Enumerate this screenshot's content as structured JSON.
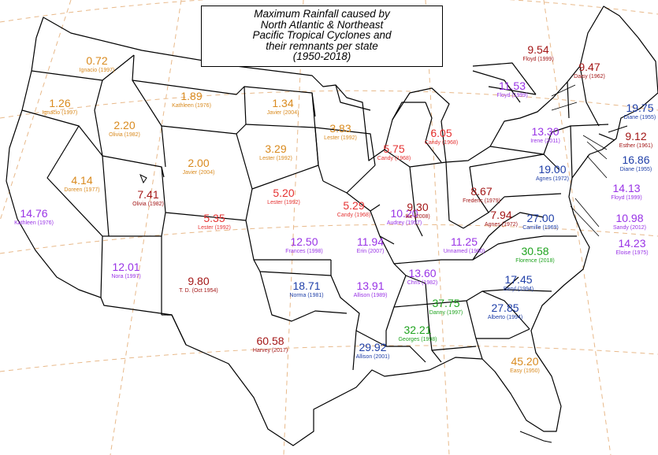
{
  "title_lines": [
    "Maximum Rainfall caused by",
    "North Atlantic & Northeast",
    "Pacific Tropical Cyclones and",
    "their remnants per state",
    "(1950-2018)"
  ],
  "colors": {
    "orange": "#d98a1e",
    "red": "#e53333",
    "darkred": "#a31616",
    "purple": "#9933e6",
    "blue": "#1f3fa8",
    "green": "#1fa31f",
    "border": "#000000",
    "graticule": "#e8b98a"
  },
  "states": [
    {
      "id": "WA",
      "value": "0.72",
      "storm": "Ignacio (1997)",
      "color": "orange"
    },
    {
      "id": "OR",
      "value": "1.26",
      "storm": "Ignacio (1997)",
      "color": "orange"
    },
    {
      "id": "ID",
      "value": "2.20",
      "storm": "Olivia (1982)",
      "color": "orange"
    },
    {
      "id": "MT",
      "value": "1.89",
      "storm": "Kathleen (1976)",
      "color": "orange"
    },
    {
      "id": "ND",
      "value": "1.34",
      "storm": "Javier (2004)",
      "color": "orange"
    },
    {
      "id": "MN",
      "value": "3.83",
      "storm": "Lester (1992)",
      "color": "orange"
    },
    {
      "id": "SD",
      "value": "3.29",
      "storm": "Lester (1992)",
      "color": "orange"
    },
    {
      "id": "WY",
      "value": "2.00",
      "storm": "Javier (2004)",
      "color": "orange"
    },
    {
      "id": "NV",
      "value": "4.14",
      "storm": "Doreen (1977)",
      "color": "orange"
    },
    {
      "id": "UT",
      "value": "7.41",
      "storm": "Olivia (1982)",
      "color": "darkred"
    },
    {
      "id": "CO",
      "value": "5.35",
      "storm": "Lester (1992)",
      "color": "red"
    },
    {
      "id": "NE",
      "value": "5.20",
      "storm": "Lester (1992)",
      "color": "red"
    },
    {
      "id": "IA",
      "value": "5.29",
      "storm": "Candy (1968)",
      "color": "red"
    },
    {
      "id": "WI",
      "value": "5.75",
      "storm": "Candy (1968)",
      "color": "red"
    },
    {
      "id": "MI",
      "value": "6.05",
      "storm": "Candy (1968)",
      "color": "red"
    },
    {
      "id": "CA",
      "value": "14.76",
      "storm": "Kathleen (1976)",
      "color": "purple"
    },
    {
      "id": "AZ",
      "value": "12.01",
      "storm": "Nora (1997)",
      "color": "purple"
    },
    {
      "id": "NM",
      "value": "9.80",
      "storm": "T. D. (Oct 1954)",
      "color": "darkred"
    },
    {
      "id": "KS",
      "value": "12.50",
      "storm": "Frances (1998)",
      "color": "purple"
    },
    {
      "id": "MO",
      "value": "11.94",
      "storm": "Erin (2007)",
      "color": "purple"
    },
    {
      "id": "IL",
      "value": "10.20",
      "storm": "Audrey (1957)",
      "color": "purple"
    },
    {
      "id": "IN",
      "value": "9.30",
      "storm": "Ike (2008)",
      "color": "darkred"
    },
    {
      "id": "OH",
      "value": "8.67",
      "storm": "Frederic (1979)",
      "color": "darkred"
    },
    {
      "id": "WV",
      "value": "7.94",
      "storm": "Agnes (1972)",
      "color": "darkred"
    },
    {
      "id": "KY",
      "value": "11.25",
      "storm": "Unnamed (1960)",
      "color": "purple"
    },
    {
      "id": "TN",
      "value": "13.60",
      "storm": "Chris (1982)",
      "color": "purple"
    },
    {
      "id": "AR",
      "value": "13.91",
      "storm": "Allison (1989)",
      "color": "purple"
    },
    {
      "id": "OK",
      "value": "18.71",
      "storm": "Norma (1981)",
      "color": "blue"
    },
    {
      "id": "TX",
      "value": "60.58",
      "storm": "Harvey (2017)",
      "color": "darkred"
    },
    {
      "id": "LA",
      "value": "29.92",
      "storm": "Allison (2001)",
      "color": "blue"
    },
    {
      "id": "MS",
      "value": "32.21",
      "storm": "Georges (1998)",
      "color": "green"
    },
    {
      "id": "AL",
      "value": "37.75",
      "storm": "Danny (1997)",
      "color": "green"
    },
    {
      "id": "GA",
      "value": "27.85",
      "storm": "Alberto (1994)",
      "color": "blue"
    },
    {
      "id": "FL",
      "value": "45.20",
      "storm": "Easy (1950)",
      "color": "orange"
    },
    {
      "id": "SC",
      "value": "17.45",
      "storm": "Beryl (1994)",
      "color": "blue"
    },
    {
      "id": "NC",
      "value": "30.58",
      "storm": "Florence (2018)",
      "color": "green"
    },
    {
      "id": "VA",
      "value": "27.00",
      "storm": "Camille (1969)",
      "color": "blue"
    },
    {
      "id": "PA",
      "value": "19.00",
      "storm": "Agnes (1972)",
      "color": "blue"
    },
    {
      "id": "NY",
      "value": "13.30",
      "storm": "Irene (2011)",
      "color": "purple"
    },
    {
      "id": "VT",
      "value": "11.53",
      "storm": "Floyd (1999)",
      "color": "purple"
    },
    {
      "id": "NH",
      "value": "9.54",
      "storm": "Floyd (1999)",
      "color": "darkred"
    },
    {
      "id": "ME",
      "value": "9.47",
      "storm": "Daisy (1962)",
      "color": "darkred"
    },
    {
      "id": "MA",
      "value": "19.75",
      "storm": "Diane (1955)",
      "color": "blue"
    },
    {
      "id": "RI",
      "value": "9.12",
      "storm": "Esther (1961)",
      "color": "darkred"
    },
    {
      "id": "CT",
      "value": "16.86",
      "storm": "Diane (1955)",
      "color": "blue"
    },
    {
      "id": "NJ",
      "value": "14.13",
      "storm": "Floyd (1999)",
      "color": "purple"
    },
    {
      "id": "DE",
      "value": "10.98",
      "storm": "Sandy (2012)",
      "color": "purple"
    },
    {
      "id": "MD",
      "value": "14.23",
      "storm": "Eloise (1975)",
      "color": "purple"
    }
  ]
}
